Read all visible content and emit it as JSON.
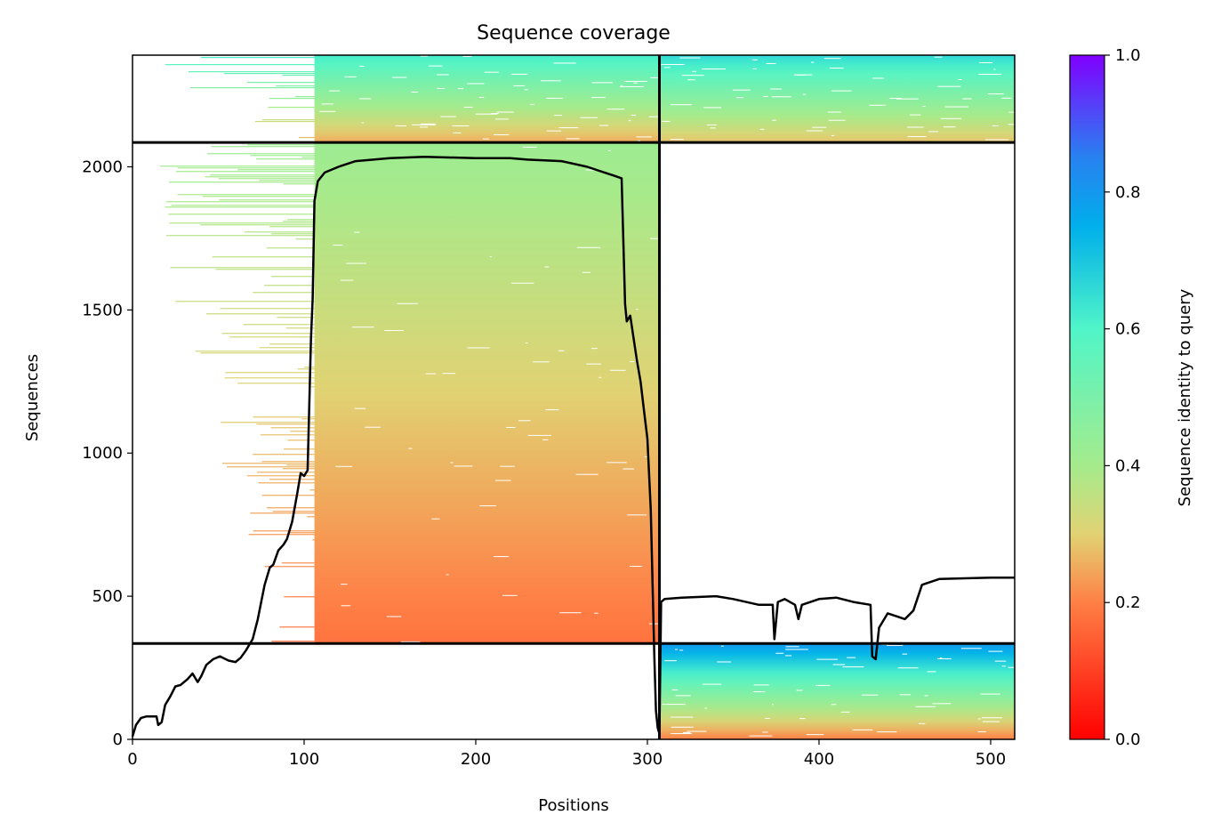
{
  "chart_data": {
    "type": "heatmap",
    "title": "Sequence coverage",
    "xlabel": "Positions",
    "ylabel": "Sequences",
    "xlim": [
      0,
      514
    ],
    "ylim": [
      0,
      2390
    ],
    "xticks": [
      0,
      100,
      200,
      300,
      400,
      500
    ],
    "yticks": [
      0,
      500,
      1000,
      1500,
      2000
    ],
    "colorbar": {
      "label": "Sequence identity to query",
      "range": [
        0.0,
        1.0
      ],
      "ticks": [
        "0.0",
        "0.2",
        "0.4",
        "0.6",
        "0.8",
        "1.0"
      ],
      "colormap": "rainbow_r"
    },
    "separators": {
      "vertical_at_position": 307,
      "horizontal_at_sequence": [
        335,
        2085
      ]
    },
    "blocks": [
      {
        "x": [
          106,
          307
        ],
        "y": [
          2085,
          2390
        ],
        "identity_bottom": 0.25,
        "identity_top": 0.62,
        "ragged_left_from": 0
      },
      {
        "x": [
          307,
          514
        ],
        "y": [
          2085,
          2390
        ],
        "identity_bottom": 0.28,
        "identity_top": 0.66,
        "ragged_left_from": 307
      },
      {
        "x": [
          106,
          307
        ],
        "y": [
          335,
          2085
        ],
        "identity_bottom": 0.18,
        "identity_top": 0.42,
        "ragged_left_from": 0
      },
      {
        "x": [
          307,
          514
        ],
        "y": [
          0,
          335
        ],
        "identity_bottom": 0.2,
        "identity_top": 0.8,
        "ragged_left_from": 307
      }
    ],
    "series": [
      {
        "type": "line",
        "color": "#000000",
        "x": [
          0,
          2,
          5,
          8,
          14,
          15,
          17,
          19,
          22,
          25,
          28,
          32,
          35,
          38,
          40,
          43,
          47,
          51,
          56,
          60,
          63,
          66,
          70,
          73,
          75,
          77,
          80,
          82,
          85,
          88,
          90,
          93,
          96,
          98,
          100,
          102,
          104,
          105,
          106,
          108,
          112,
          120,
          130,
          150,
          170,
          200,
          220,
          230,
          250,
          265,
          275,
          280,
          285,
          287,
          288,
          290,
          292,
          294,
          296,
          298,
          300,
          302,
          304,
          305,
          306,
          307,
          308,
          310,
          320,
          340,
          350,
          365,
          373,
          374,
          376,
          380,
          386,
          388,
          390,
          400,
          410,
          420,
          430,
          431,
          433,
          435,
          440,
          445,
          450,
          455,
          460,
          470,
          500,
          514
        ],
        "y": [
          10,
          50,
          75,
          80,
          80,
          50,
          60,
          120,
          150,
          185,
          190,
          210,
          230,
          200,
          220,
          260,
          280,
          290,
          275,
          270,
          285,
          310,
          350,
          420,
          480,
          540,
          600,
          610,
          660,
          680,
          700,
          760,
          860,
          930,
          920,
          940,
          1400,
          1540,
          1880,
          1950,
          1980,
          2000,
          2020,
          2030,
          2035,
          2030,
          2030,
          2025,
          2020,
          2000,
          1980,
          1970,
          1960,
          1520,
          1460,
          1480,
          1400,
          1320,
          1250,
          1150,
          1050,
          800,
          300,
          100,
          40,
          20,
          480,
          490,
          495,
          500,
          490,
          470,
          470,
          350,
          480,
          490,
          470,
          420,
          470,
          490,
          495,
          480,
          470,
          290,
          280,
          390,
          440,
          430,
          420,
          450,
          540,
          560,
          565,
          565
        ]
      }
    ]
  }
}
